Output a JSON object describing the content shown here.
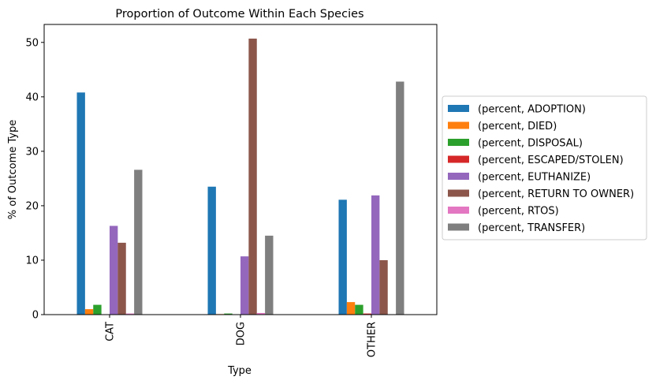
{
  "chart_data": {
    "type": "bar",
    "title": "Proportion of Outcome Within Each Species",
    "xlabel": "Type",
    "ylabel": "% of Outcome Type",
    "categories": [
      "CAT",
      "DOG",
      "OTHER"
    ],
    "ylim": [
      0,
      53.3
    ],
    "yticks": [
      0,
      10,
      20,
      30,
      40,
      50
    ],
    "grid": false,
    "legend_position": "right",
    "series": [
      {
        "name": "(percent, ADOPTION)",
        "color": "#1f77b4",
        "values": [
          40.8,
          23.5,
          21.1
        ]
      },
      {
        "name": "(percent, DIED)",
        "color": "#ff7f0e",
        "values": [
          1.0,
          0.1,
          2.3
        ]
      },
      {
        "name": "(percent, DISPOSAL)",
        "color": "#2ca02c",
        "values": [
          1.8,
          0.2,
          1.8
        ]
      },
      {
        "name": "(percent, ESCAPED/STOLEN)",
        "color": "#d62728",
        "values": [
          0.0,
          0.0,
          0.2
        ]
      },
      {
        "name": "(percent, EUTHANIZE)",
        "color": "#9467bd",
        "values": [
          16.3,
          10.7,
          21.9
        ]
      },
      {
        "name": "(percent, RETURN TO OWNER)",
        "color": "#8c564b",
        "values": [
          13.2,
          50.7,
          10.0
        ]
      },
      {
        "name": "(percent, RTOS)",
        "color": "#e377c2",
        "values": [
          0.2,
          0.3,
          0.0
        ]
      },
      {
        "name": "(percent, TRANSFER)",
        "color": "#7f7f7f",
        "values": [
          26.6,
          14.5,
          42.8
        ]
      }
    ]
  }
}
